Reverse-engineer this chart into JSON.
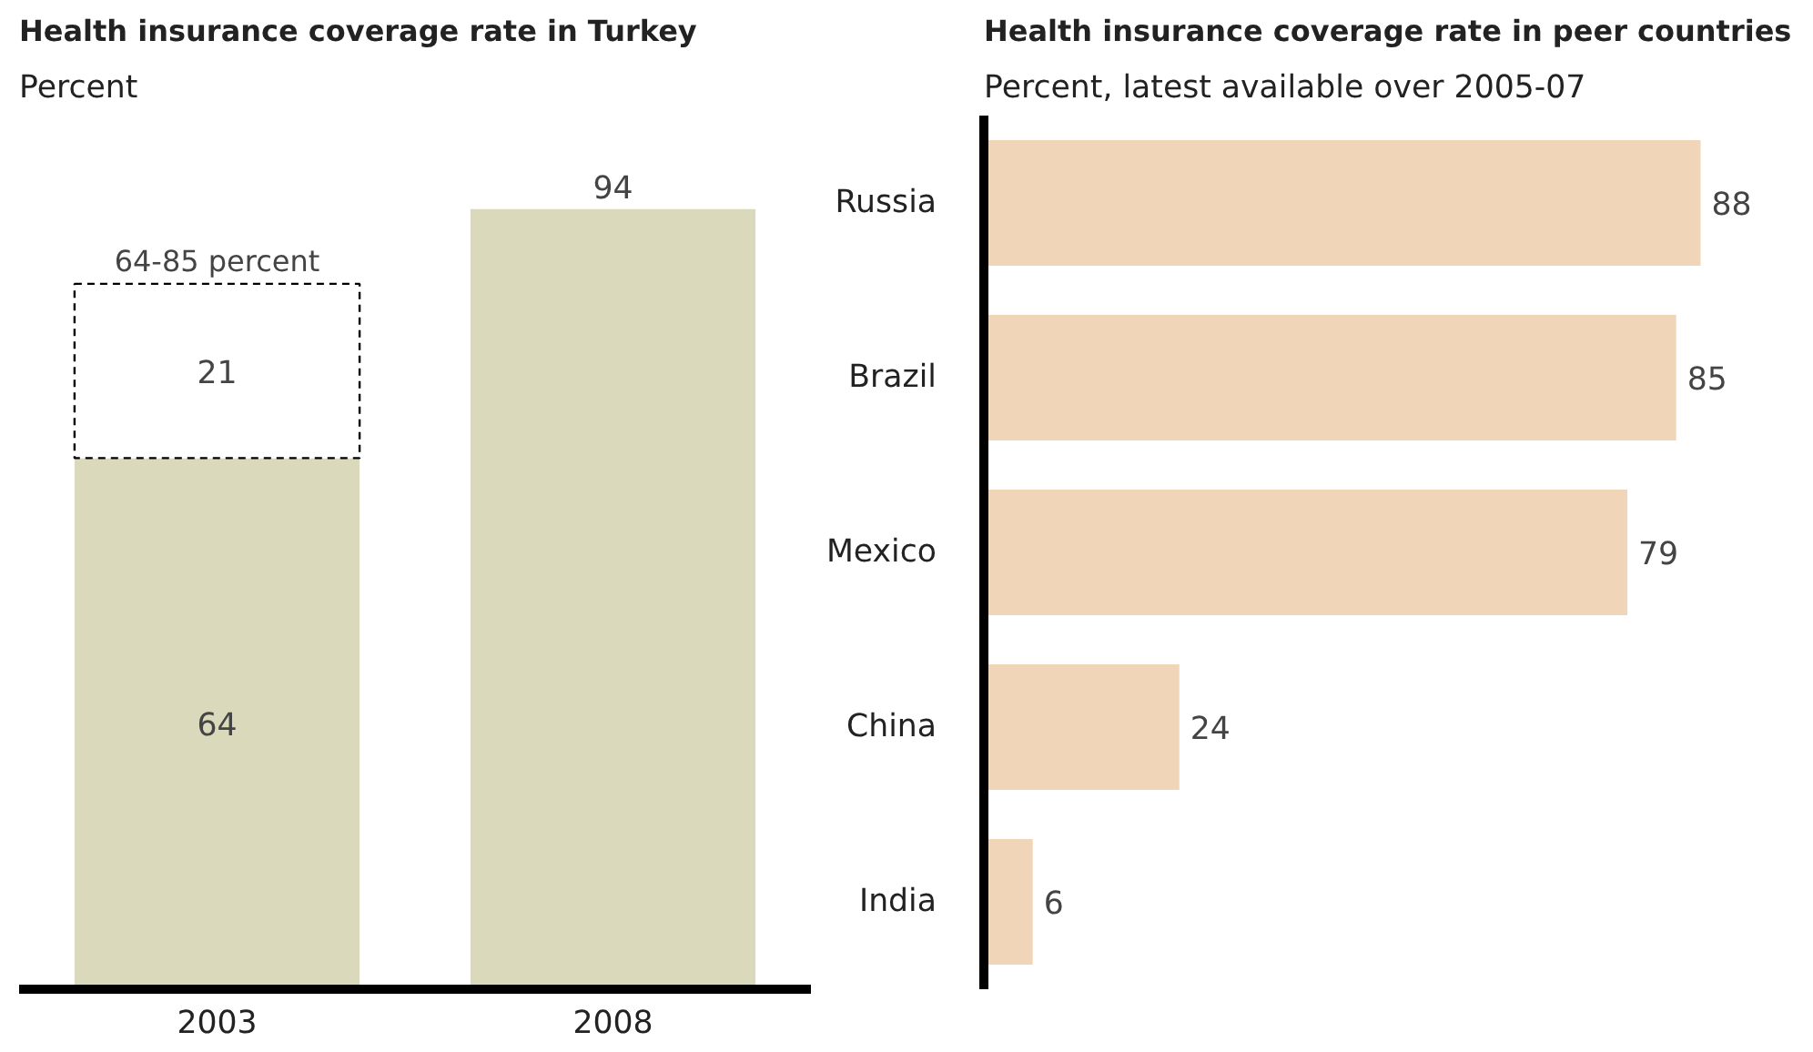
{
  "chart_data": [
    {
      "type": "bar",
      "title": "Health insurance coverage rate in Turkey",
      "subtitle": "Percent",
      "categories": [
        "2003",
        "2008"
      ],
      "stacked": true,
      "data_labels": true,
      "tick_labels": "x",
      "grid": false,
      "series": [
        {
          "color": "#dbd9bc",
          "values": [
            64,
            94
          ]
        },
        {
          "color": "#ffffff",
          "values": [
            21,
            null
          ],
          "line_style": "dashed"
        }
      ],
      "annotations": [
        {
          "text": "64-85 percent",
          "x": "2003",
          "y": 85
        }
      ]
    },
    {
      "type": "bar",
      "orientation": "horizontal",
      "title": "Health insurance coverage rate in peer countries",
      "subtitle": "Percent, latest available over 2005-07",
      "categories": [
        "Russia",
        "Brazil",
        "Mexico",
        "China",
        "India"
      ],
      "values": [
        88,
        85,
        79,
        24,
        6
      ],
      "color": "#f0d5b8",
      "data_labels": true,
      "tick_labels": "y",
      "grid": false
    }
  ]
}
